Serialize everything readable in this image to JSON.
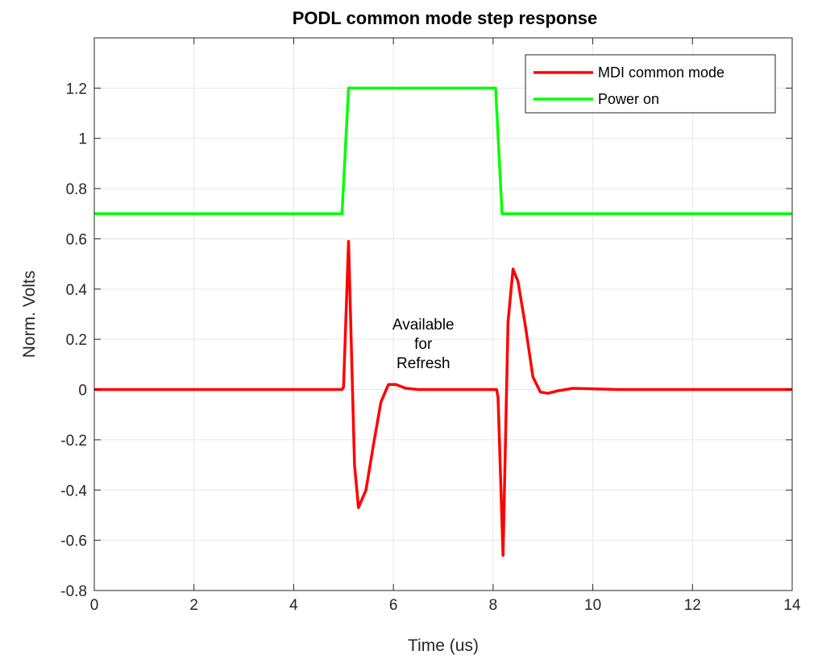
{
  "chart_data": {
    "type": "line",
    "title": "PODL common mode step response",
    "xlabel": "Time (us)",
    "ylabel": "Norm. Volts",
    "xlim": [
      0,
      14
    ],
    "ylim": [
      -0.8,
      1.4
    ],
    "xticks": [
      0,
      2,
      4,
      6,
      8,
      10,
      12,
      14
    ],
    "yticks": [
      -0.8,
      -0.6,
      -0.4,
      -0.2,
      0,
      0.2,
      0.4,
      0.6,
      0.8,
      1,
      1.2
    ],
    "xtick_labels": [
      "0",
      "2",
      "4",
      "6",
      "8",
      "10",
      "12",
      "14"
    ],
    "ytick_labels": [
      "-0.8",
      "-0.6",
      "-0.4",
      "-0.2",
      "0",
      "0.2",
      "0.4",
      "0.6",
      "0.8",
      "1",
      "1.2"
    ],
    "grid": true,
    "legend_position": "top-right",
    "series": [
      {
        "name": "MDI common mode",
        "color": "#ff0000",
        "x": [
          0,
          4.97,
          5.0,
          5.1,
          5.22,
          5.3,
          5.45,
          5.6,
          5.75,
          5.9,
          6.05,
          6.25,
          6.5,
          7.0,
          8.0,
          8.07,
          8.1,
          8.2,
          8.3,
          8.4,
          8.5,
          8.65,
          8.8,
          8.95,
          9.1,
          9.3,
          9.6,
          10.5,
          14
        ],
        "y": [
          0,
          0,
          0.01,
          0.59,
          -0.3,
          -0.47,
          -0.4,
          -0.22,
          -0.05,
          0.02,
          0.02,
          0.005,
          0,
          0,
          0,
          0,
          -0.03,
          -0.66,
          0.27,
          0.48,
          0.43,
          0.25,
          0.05,
          -0.01,
          -0.015,
          -0.005,
          0.005,
          0,
          0
        ]
      },
      {
        "name": "Power on",
        "color": "#00ff00",
        "x": [
          0,
          4.97,
          5.1,
          8.05,
          8.18,
          14
        ],
        "y": [
          0.7,
          0.7,
          1.2,
          1.2,
          0.7,
          0.7
        ]
      }
    ],
    "annotation": {
      "lines": [
        "Available",
        "for",
        "Refresh"
      ],
      "x": 6.6,
      "y": 0.2
    }
  }
}
